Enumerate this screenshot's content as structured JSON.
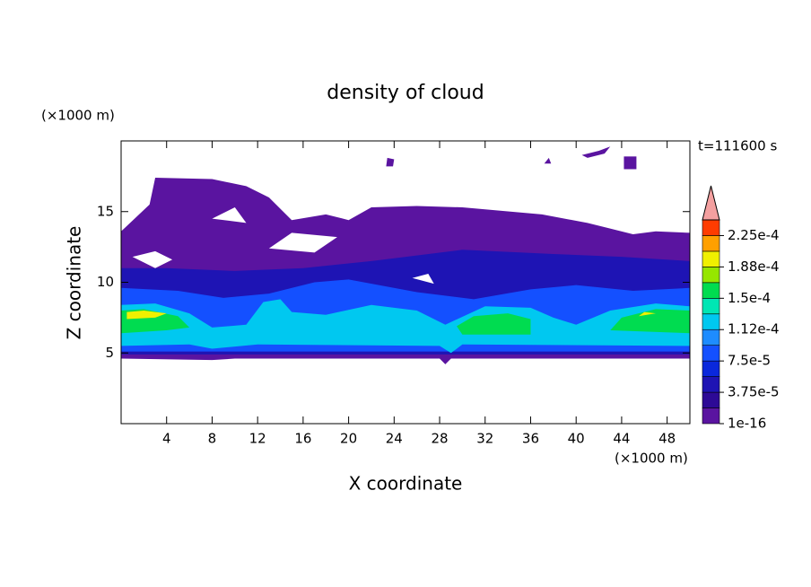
{
  "chart_data": {
    "type": "contour",
    "title": "density of cloud",
    "xlabel": "X coordinate",
    "ylabel": "Z coordinate",
    "xunit": "(×1000 m)",
    "yunit": "(×1000 m)",
    "annotation": "t=111600 s",
    "xlim": [
      0,
      50
    ],
    "ylim": [
      0,
      20
    ],
    "xticks": [
      4,
      8,
      12,
      16,
      20,
      24,
      28,
      32,
      36,
      40,
      44,
      48
    ],
    "yticks": [
      5,
      10,
      15
    ],
    "colorbar": {
      "clim": [
        1e-16,
        0.00024375
      ],
      "ticks": [
        {
          "value": 1e-16,
          "label": "1e-16"
        },
        {
          "value": 3.75e-05,
          "label": "3.75e-5"
        },
        {
          "value": 7.5e-05,
          "label": "7.5e-5"
        },
        {
          "value": 0.0001125,
          "label": "1.12e-4"
        },
        {
          "value": 0.00015,
          "label": "1.5e-4"
        },
        {
          "value": 0.0001875,
          "label": "1.88e-4"
        },
        {
          "value": 0.000225,
          "label": "2.25e-4"
        }
      ],
      "colors": [
        "#5a14a0",
        "#2d0a96",
        "#1e14b4",
        "#0a28dc",
        "#1450ff",
        "#1e8cff",
        "#00c8f0",
        "#00e6b4",
        "#00dc50",
        "#96e600",
        "#f0f000",
        "#ffa000",
        "#ff3c00"
      ],
      "extend_color": "#f4a0a0"
    }
  }
}
